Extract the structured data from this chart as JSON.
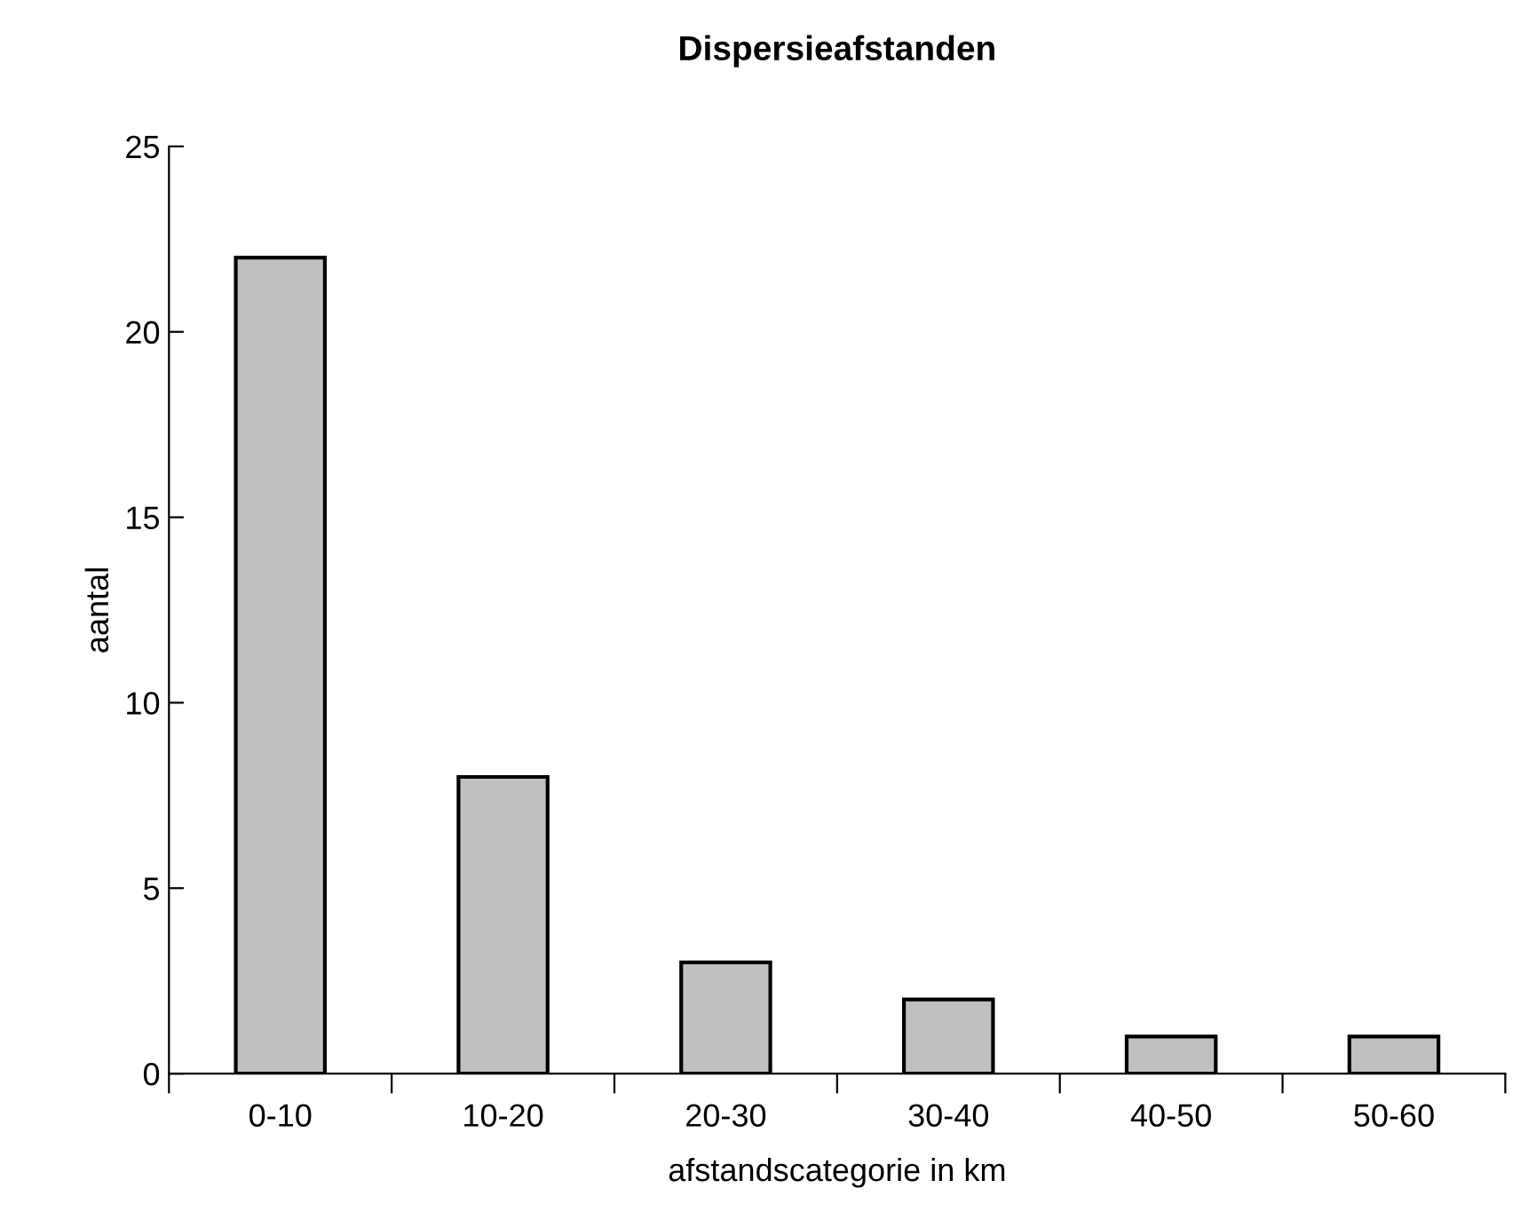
{
  "chart_data": {
    "type": "bar",
    "title": "Dispersieafstanden",
    "xlabel": "afstandscategorie in km",
    "ylabel": "aantal",
    "categories": [
      "0-10",
      "10-20",
      "20-30",
      "30-40",
      "40-50",
      "50-60"
    ],
    "values": [
      22,
      8,
      3,
      2,
      1,
      1
    ],
    "color": "#c0c0c0",
    "ylim": [
      0,
      25
    ],
    "yticks": [
      0,
      5,
      10,
      15,
      20,
      25
    ],
    "grid": false
  }
}
